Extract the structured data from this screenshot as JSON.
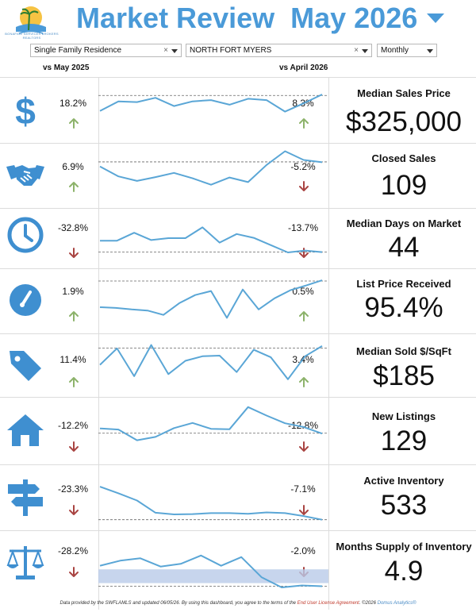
{
  "header": {
    "logo_text": "BONAFIDE SERVICES BROKERS REALTORS",
    "title": "Market Review  May 2026"
  },
  "filters": {
    "property_type": "Single Family Residence",
    "area": "NORTH FORT MYERS",
    "period": "Monthly"
  },
  "columns": {
    "vs_year": "vs May 2025",
    "vs_month": "vs April 2026"
  },
  "colors": {
    "accent": "#4a9ad8",
    "line": "#5aa6d6",
    "up": "#8db36b",
    "down": "#a94442",
    "band": "#b9cbe8"
  },
  "footer": {
    "text1": "Data provided by the SWFLAMLS and updated 06/05/26.  By using this dashboard, you agree to the terms of the ",
    "link": "End User License Agreement",
    "text2": ".  ©2026 ",
    "brand": "Domus Analytics®"
  },
  "metrics": [
    {
      "name": "Median Sales Price",
      "value": "$325,000",
      "icon": "dollar-icon",
      "yoy": "18.2%",
      "yoy_dir": "up",
      "mom": "8.3%",
      "mom_dir": "up"
    },
    {
      "name": "Closed Sales",
      "value": "109",
      "icon": "handshake-icon",
      "yoy": "6.9%",
      "yoy_dir": "up",
      "mom": "-5.2%",
      "mom_dir": "down"
    },
    {
      "name": "Median Days on Market",
      "value": "44",
      "icon": "clock-icon",
      "yoy": "-32.8%",
      "yoy_dir": "down",
      "mom": "-13.7%",
      "mom_dir": "down"
    },
    {
      "name": "List Price Received",
      "value": "95.4%",
      "icon": "gauge-icon",
      "yoy": "1.9%",
      "yoy_dir": "up",
      "mom": "0.5%",
      "mom_dir": "up"
    },
    {
      "name": "Median Sold $/SqFt",
      "value": "$185",
      "icon": "price-tag-icon",
      "yoy": "11.4%",
      "yoy_dir": "up",
      "mom": "3.4%",
      "mom_dir": "up"
    },
    {
      "name": "New Listings",
      "value": "129",
      "icon": "house-icon",
      "yoy": "-12.2%",
      "yoy_dir": "down",
      "mom": "-12.8%",
      "mom_dir": "down"
    },
    {
      "name": "Active Inventory",
      "value": "533",
      "icon": "signpost-icon",
      "yoy": "-23.3%",
      "yoy_dir": "down",
      "mom": "-7.1%",
      "mom_dir": "down"
    },
    {
      "name": "Months Supply of Inventory",
      "value": "4.9",
      "icon": "scales-icon",
      "yoy": "-28.2%",
      "yoy_dir": "down",
      "mom": "-2.0%",
      "mom_dir": "down"
    }
  ],
  "chart_data": [
    {
      "type": "line",
      "title": "Median Sales Price",
      "values": [
        6.3,
        9.2,
        9.0,
        10.3,
        7.8,
        9.2,
        9.6,
        8.2,
        10.0,
        9.6,
        6.1,
        8.6,
        11.3
      ],
      "reference": 11.0
    },
    {
      "type": "line",
      "title": "Closed Sales",
      "values": [
        8.4,
        5.8,
        4.6,
        5.6,
        6.7,
        5.3,
        3.6,
        5.5,
        4.3,
        8.8,
        12.4,
        10.1,
        9.5
      ],
      "reference": 9.6
    },
    {
      "type": "line",
      "title": "Median Days on Market",
      "values": [
        5.2,
        5.2,
        7.7,
        5.4,
        6.0,
        6.0,
        9.4,
        4.6,
        7.3,
        6.1,
        3.8,
        1.5,
        2.1,
        1.6
      ],
      "reference": 1.6
    },
    {
      "type": "line",
      "title": "List Price Received",
      "values": [
        4.1,
        3.9,
        3.5,
        3.2,
        2.0,
        5.2,
        7.4,
        8.5,
        1.2,
        8.9,
        3.5,
        6.5,
        8.7,
        10.0,
        11.4
      ],
      "reference": 11.2
    },
    {
      "type": "line",
      "title": "Median Sold $/SqFt",
      "values": [
        6.1,
        10.9,
        2.8,
        11.9,
        3.4,
        7.3,
        8.6,
        8.8,
        4.0,
        10.5,
        8.3,
        1.9,
        8.6,
        11.6
      ],
      "reference": 11.0
    },
    {
      "type": "line",
      "title": "New Listings",
      "values": [
        4.8,
        4.5,
        1.6,
        2.5,
        4.9,
        6.3,
        4.7,
        4.6,
        10.6,
        8.3,
        6.2,
        5.2,
        3.4
      ],
      "reference": 3.5
    },
    {
      "type": "line",
      "title": "Active Inventory",
      "values": [
        10.8,
        8.8,
        6.6,
        2.9,
        2.4,
        2.5,
        2.8,
        2.8,
        2.6,
        3.0,
        2.8,
        1.9,
        0.8
      ],
      "reference": 0.8
    },
    {
      "type": "line",
      "title": "Months Supply of Inventory",
      "values": [
        5.9,
        7.2,
        7.8,
        5.7,
        6.4,
        8.5,
        5.9,
        8.1,
        3.0,
        0.4,
        0.9,
        0.7
      ],
      "band": [
        1.5,
        5.0
      ],
      "reference": 0.7
    }
  ]
}
